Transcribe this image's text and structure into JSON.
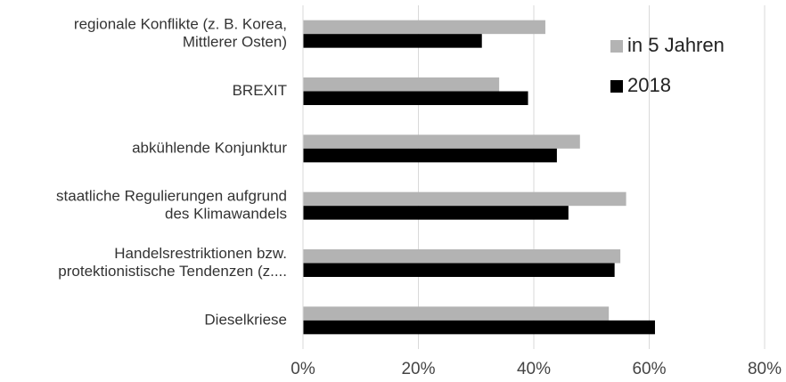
{
  "chart_data": {
    "type": "hbar",
    "categories": [
      [
        "regionale Konflikte (z. B. Korea,",
        "Mittlerer Osten)"
      ],
      [
        "BREXIT"
      ],
      [
        "abkühlende Konjunktur"
      ],
      [
        "staatliche Regulierungen aufgrund",
        "des Klimawandels"
      ],
      [
        "Handelsrestriktionen bzw.",
        "protektionistische Tendenzen (z...."
      ],
      [
        "Dieselkriese"
      ]
    ],
    "series": [
      {
        "name": "in 5 Jahren",
        "color": "#b3b3b3",
        "values": [
          42,
          34,
          48,
          56,
          55,
          53
        ]
      },
      {
        "name": "2018",
        "color": "#000000",
        "values": [
          31,
          39,
          44,
          46,
          54,
          61
        ]
      }
    ],
    "xlim": [
      0,
      80
    ],
    "xticks": [
      {
        "value": 0,
        "label": "0%"
      },
      {
        "value": 20,
        "label": "20%"
      },
      {
        "value": 40,
        "label": "40%"
      },
      {
        "value": 60,
        "label": "60%"
      },
      {
        "value": 80,
        "label": "80%"
      }
    ],
    "grid": true,
    "legend": "top-right"
  }
}
